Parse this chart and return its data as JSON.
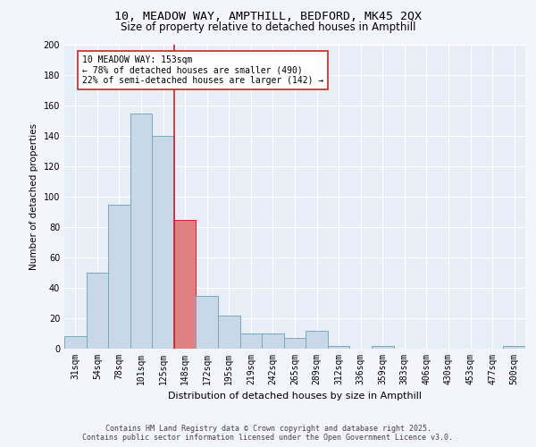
{
  "title_line1": "10, MEADOW WAY, AMPTHILL, BEDFORD, MK45 2QX",
  "title_line2": "Size of property relative to detached houses in Ampthill",
  "xlabel": "Distribution of detached houses by size in Ampthill",
  "ylabel": "Number of detached properties",
  "categories": [
    "31sqm",
    "54sqm",
    "78sqm",
    "101sqm",
    "125sqm",
    "148sqm",
    "172sqm",
    "195sqm",
    "219sqm",
    "242sqm",
    "265sqm",
    "289sqm",
    "312sqm",
    "336sqm",
    "359sqm",
    "383sqm",
    "406sqm",
    "430sqm",
    "453sqm",
    "477sqm",
    "500sqm"
  ],
  "values": [
    8,
    50,
    95,
    155,
    140,
    85,
    35,
    22,
    10,
    10,
    7,
    12,
    2,
    0,
    2,
    0,
    0,
    0,
    0,
    0,
    2
  ],
  "bar_color": "#c8d8e8",
  "bar_edge_color": "#7aaabb",
  "highlight_bar_index": 5,
  "highlight_bar_color": "#e08080",
  "highlight_bar_edge_color": "#cc2222",
  "vline_color": "#cc2222",
  "annotation_text": "10 MEADOW WAY: 153sqm\n← 78% of detached houses are smaller (490)\n22% of semi-detached houses are larger (142) →",
  "annotation_box_color": "#ffffff",
  "annotation_box_edge_color": "#cc2222",
  "ylim": [
    0,
    200
  ],
  "yticks": [
    0,
    20,
    40,
    60,
    80,
    100,
    120,
    140,
    160,
    180,
    200
  ],
  "background_color": "#e8eef8",
  "fig_background_color": "#f4f4fc",
  "footer_line1": "Contains HM Land Registry data © Crown copyright and database right 2025.",
  "footer_line2": "Contains public sector information licensed under the Open Government Licence v3.0."
}
